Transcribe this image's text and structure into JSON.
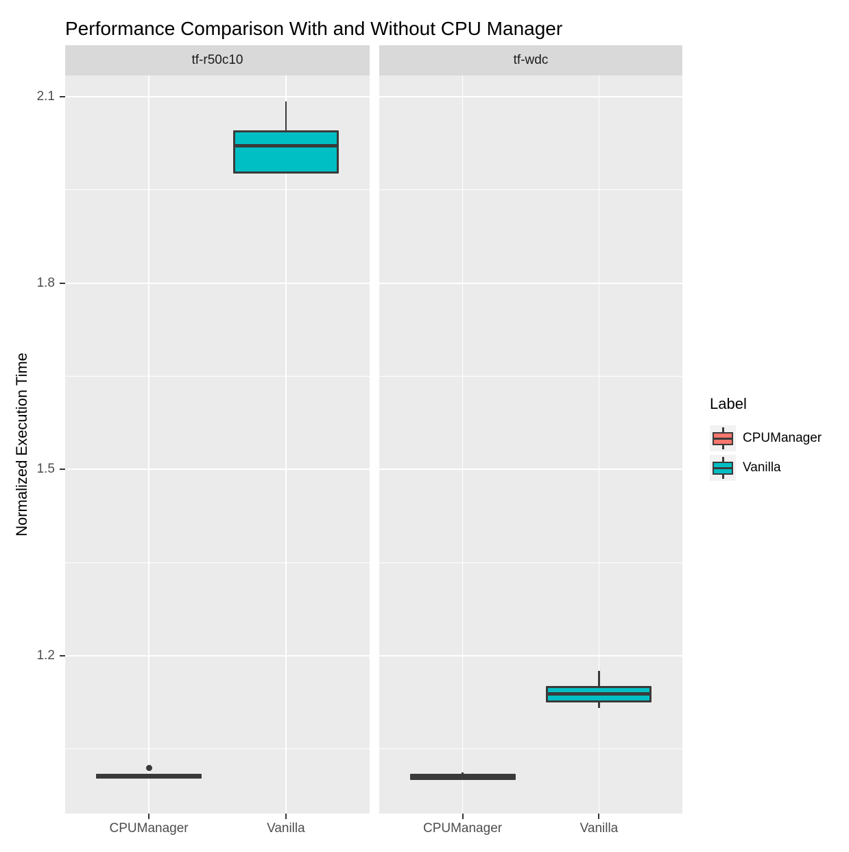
{
  "chart_data": {
    "type": "boxplot",
    "title": "Performance Comparison With and Without CPU Manager",
    "ylabel": "Normalized Execution Time",
    "xlabel": "",
    "categories": [
      "CPUManager",
      "Vanilla"
    ],
    "y_ticks": [
      2.1,
      1.8,
      1.5,
      1.2
    ],
    "y_minor_ticks": [
      1.95,
      1.65,
      1.35,
      1.05
    ],
    "ylim": [
      0.95,
      2.13
    ],
    "grid": true,
    "legend_position": "right",
    "facets": [
      {
        "label": "tf-r50c10",
        "boxes": [
          {
            "category": "CPUManager",
            "series": "CPUManager",
            "q1": 1.002,
            "median": 1.006,
            "q3": 1.01,
            "whisker_low": null,
            "whisker_high": null,
            "outliers": [
              1.019
            ]
          },
          {
            "category": "Vanilla",
            "series": "Vanilla",
            "q1": 1.976,
            "median": 2.021,
            "q3": 2.046,
            "whisker_low": null,
            "whisker_high": 2.092,
            "outliers": []
          }
        ]
      },
      {
        "label": "tf-wdc",
        "boxes": [
          {
            "category": "CPUManager",
            "series": "CPUManager",
            "q1": 1.0,
            "median": 1.005,
            "q3": 1.01,
            "whisker_low": null,
            "whisker_high": 1.012,
            "outliers": []
          },
          {
            "category": "Vanilla",
            "series": "Vanilla",
            "q1": 1.125,
            "median": 1.139,
            "q3": 1.151,
            "whisker_low": 1.116,
            "whisker_high": 1.176,
            "outliers": []
          }
        ]
      }
    ]
  },
  "legend": {
    "title": "Label",
    "entries": [
      {
        "label": "CPUManager",
        "color": "#F8766D"
      },
      {
        "label": "Vanilla",
        "color": "#00BFC4"
      }
    ]
  },
  "colors": {
    "panel_bg": "#EBEBEB",
    "strip_bg": "#D9D9D9",
    "grid": "#FFFFFF",
    "box_border": "#3A3A3A",
    "tick_mark": "#333333",
    "tick_text": "#4D4D4D",
    "strip_text": "#1A1A1A",
    "legend_key_bg": "#F2F2F2",
    "series": {
      "CPUManager": "#F8766D",
      "Vanilla": "#00BFC4"
    }
  }
}
